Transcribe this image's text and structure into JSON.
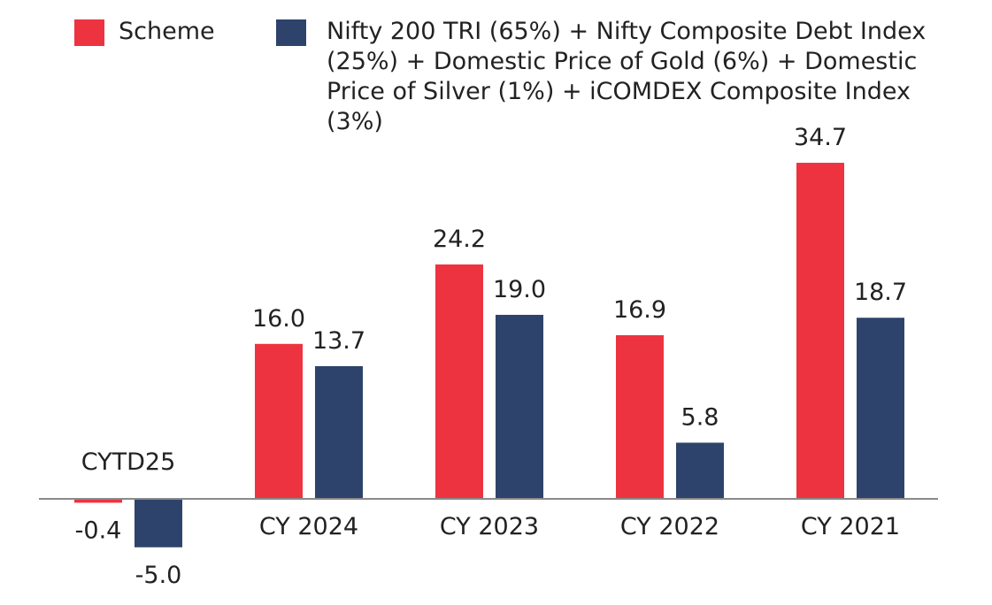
{
  "chart_data": {
    "type": "bar",
    "categories": [
      "CYTD25",
      "CY 2024",
      "CY 2023",
      "CY 2022",
      "CY 2021"
    ],
    "series": [
      {
        "name": "Scheme",
        "color": "#ee3340",
        "values": [
          -0.4,
          16.0,
          24.2,
          16.9,
          34.7
        ],
        "labels": [
          "-0.4",
          "16.0",
          "24.2",
          "16.9",
          "34.7"
        ]
      },
      {
        "name": "Nifty 200 TRI (65%) + Nifty Composite Debt Index (25%) + Domestic Price of Gold (6%) + Domestic Price of Silver (1%) + iCOMDEX Composite Index (3%)",
        "color": "#2e436b",
        "values": [
          -5.0,
          13.7,
          19.0,
          5.8,
          18.7
        ],
        "labels": [
          "-5.0",
          "13.7",
          "19.0",
          "5.8",
          "18.7"
        ]
      }
    ],
    "title": "",
    "xlabel": "",
    "ylabel": "",
    "ylim": [
      -6,
      36
    ],
    "grid": false,
    "legend": "top"
  }
}
